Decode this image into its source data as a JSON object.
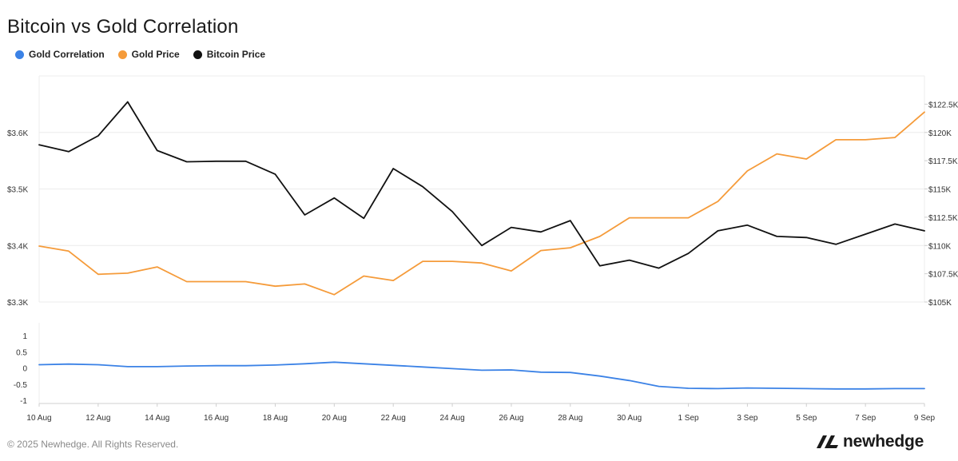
{
  "chart_data": {
    "type": "line",
    "title": "Bitcoin vs Gold Correlation",
    "legend_position": "top-left",
    "x": [
      "10 Aug",
      "11 Aug",
      "12 Aug",
      "13 Aug",
      "14 Aug",
      "15 Aug",
      "16 Aug",
      "17 Aug",
      "18 Aug",
      "19 Aug",
      "20 Aug",
      "21 Aug",
      "22 Aug",
      "23 Aug",
      "24 Aug",
      "25 Aug",
      "26 Aug",
      "27 Aug",
      "28 Aug",
      "29 Aug",
      "30 Aug",
      "31 Aug",
      "1 Sep",
      "2 Sep",
      "3 Sep",
      "4 Sep",
      "5 Sep",
      "6 Sep",
      "7 Sep",
      "8 Sep",
      "9 Sep"
    ],
    "x_tick_labels": [
      "10 Aug",
      "12 Aug",
      "14 Aug",
      "16 Aug",
      "18 Aug",
      "20 Aug",
      "22 Aug",
      "24 Aug",
      "26 Aug",
      "28 Aug",
      "30 Aug",
      "1 Sep",
      "3 Sep",
      "5 Sep",
      "7 Sep",
      "9 Sep"
    ],
    "series": [
      {
        "name": "Gold Correlation",
        "color": "#3b82e6",
        "axis": "bottom",
        "values": [
          0.1,
          0.12,
          0.1,
          0.04,
          0.04,
          0.06,
          0.07,
          0.07,
          0.09,
          0.13,
          0.18,
          0.13,
          0.08,
          0.03,
          -0.02,
          -0.07,
          -0.06,
          -0.13,
          -0.14,
          -0.25,
          -0.39,
          -0.57,
          -0.63,
          -0.64,
          -0.62,
          -0.63,
          -0.64,
          -0.65,
          -0.65,
          -0.64,
          -0.64
        ]
      },
      {
        "name": "Gold Price",
        "color": "#f59b3a",
        "axis": "left",
        "values": [
          3399,
          3390,
          3349,
          3351,
          3362,
          3336,
          3336,
          3336,
          3328,
          3332,
          3313,
          3346,
          3338,
          3372,
          3372,
          3369,
          3355,
          3391,
          3396,
          3416,
          3449,
          3449,
          3449,
          3478,
          3532,
          3562,
          3553,
          3587,
          3587,
          3591,
          3636
        ]
      },
      {
        "name": "Bitcoin Price",
        "color": "#111111",
        "axis": "right",
        "values": [
          118900,
          118300,
          119700,
          122700,
          118400,
          117400,
          117450,
          117450,
          116300,
          112700,
          114200,
          112400,
          116800,
          115200,
          113000,
          110000,
          111600,
          111200,
          112200,
          108200,
          108700,
          108000,
          109300,
          111300,
          111800,
          110800,
          110700,
          110100,
          111000,
          111900,
          111300
        ]
      }
    ],
    "axes": {
      "left": {
        "ylim": [
          3300,
          3700
        ],
        "ticks": [
          3300,
          3400,
          3500,
          3600
        ],
        "tick_labels": [
          "$3.3K",
          "$3.4K",
          "$3.5K",
          "$3.6K"
        ]
      },
      "right": {
        "ylim": [
          105000,
          125000
        ],
        "ticks": [
          105000,
          107500,
          110000,
          112500,
          115000,
          117500,
          120000,
          122500
        ],
        "tick_labels": [
          "$105K",
          "$107.5K",
          "$110K",
          "$112.5K",
          "$115K",
          "$117.5K",
          "$120K",
          "$122.5K"
        ]
      },
      "bottom": {
        "ylim": [
          -1.1,
          1.4
        ],
        "ticks": [
          1,
          0.5,
          0,
          -0.5,
          -1
        ],
        "tick_labels": [
          "1",
          "0.5",
          "0",
          "-0.5",
          "-1"
        ]
      }
    },
    "grid": true
  },
  "footer": {
    "copyright": "© 2025 Newhedge. All Rights Reserved.",
    "brand": "newhedge"
  },
  "colors": {
    "grid": "#ececec",
    "tick_text": "#333333"
  }
}
